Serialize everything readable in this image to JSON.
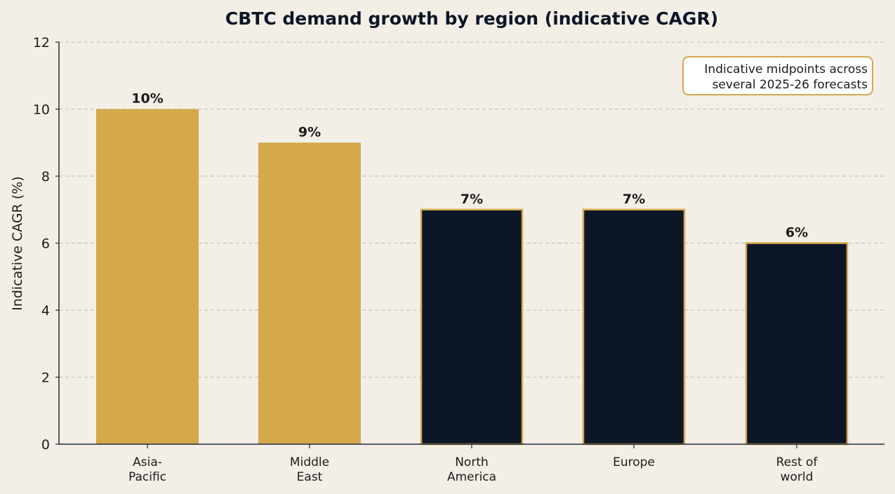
{
  "colors": {
    "background": "#f3efe7",
    "gold": "#d4a84b",
    "navy": "#0c1626",
    "text": "#1c1c1c",
    "title": "#0c1626",
    "grid": "#c8c4bc",
    "axis": "#1f2a38"
  },
  "chart_data": {
    "type": "bar",
    "title": "CBTC demand growth by region (indicative CAGR)",
    "xlabel": "",
    "ylabel": "Indicative CAGR (%)",
    "ylim": [
      0,
      12
    ],
    "yticks": [
      "0",
      "2",
      "4",
      "6",
      "8",
      "10",
      "12"
    ],
    "grid": "horizontal dashed",
    "categories": [
      [
        "Asia-",
        "Pacific"
      ],
      [
        "Middle",
        "East"
      ],
      [
        "North",
        "America"
      ],
      [
        "Europe"
      ],
      [
        "Rest of",
        "world"
      ]
    ],
    "values": [
      10,
      9,
      7,
      7,
      6
    ],
    "data_labels": [
      "10%",
      "9%",
      "7%",
      "7%",
      "6%"
    ],
    "bar_styles": [
      "gold",
      "gold",
      "navy",
      "navy",
      "navy"
    ],
    "annotation": {
      "lines": [
        "Indicative midpoints across",
        "several 2025-26 forecasts"
      ],
      "placement": "top-right"
    }
  }
}
